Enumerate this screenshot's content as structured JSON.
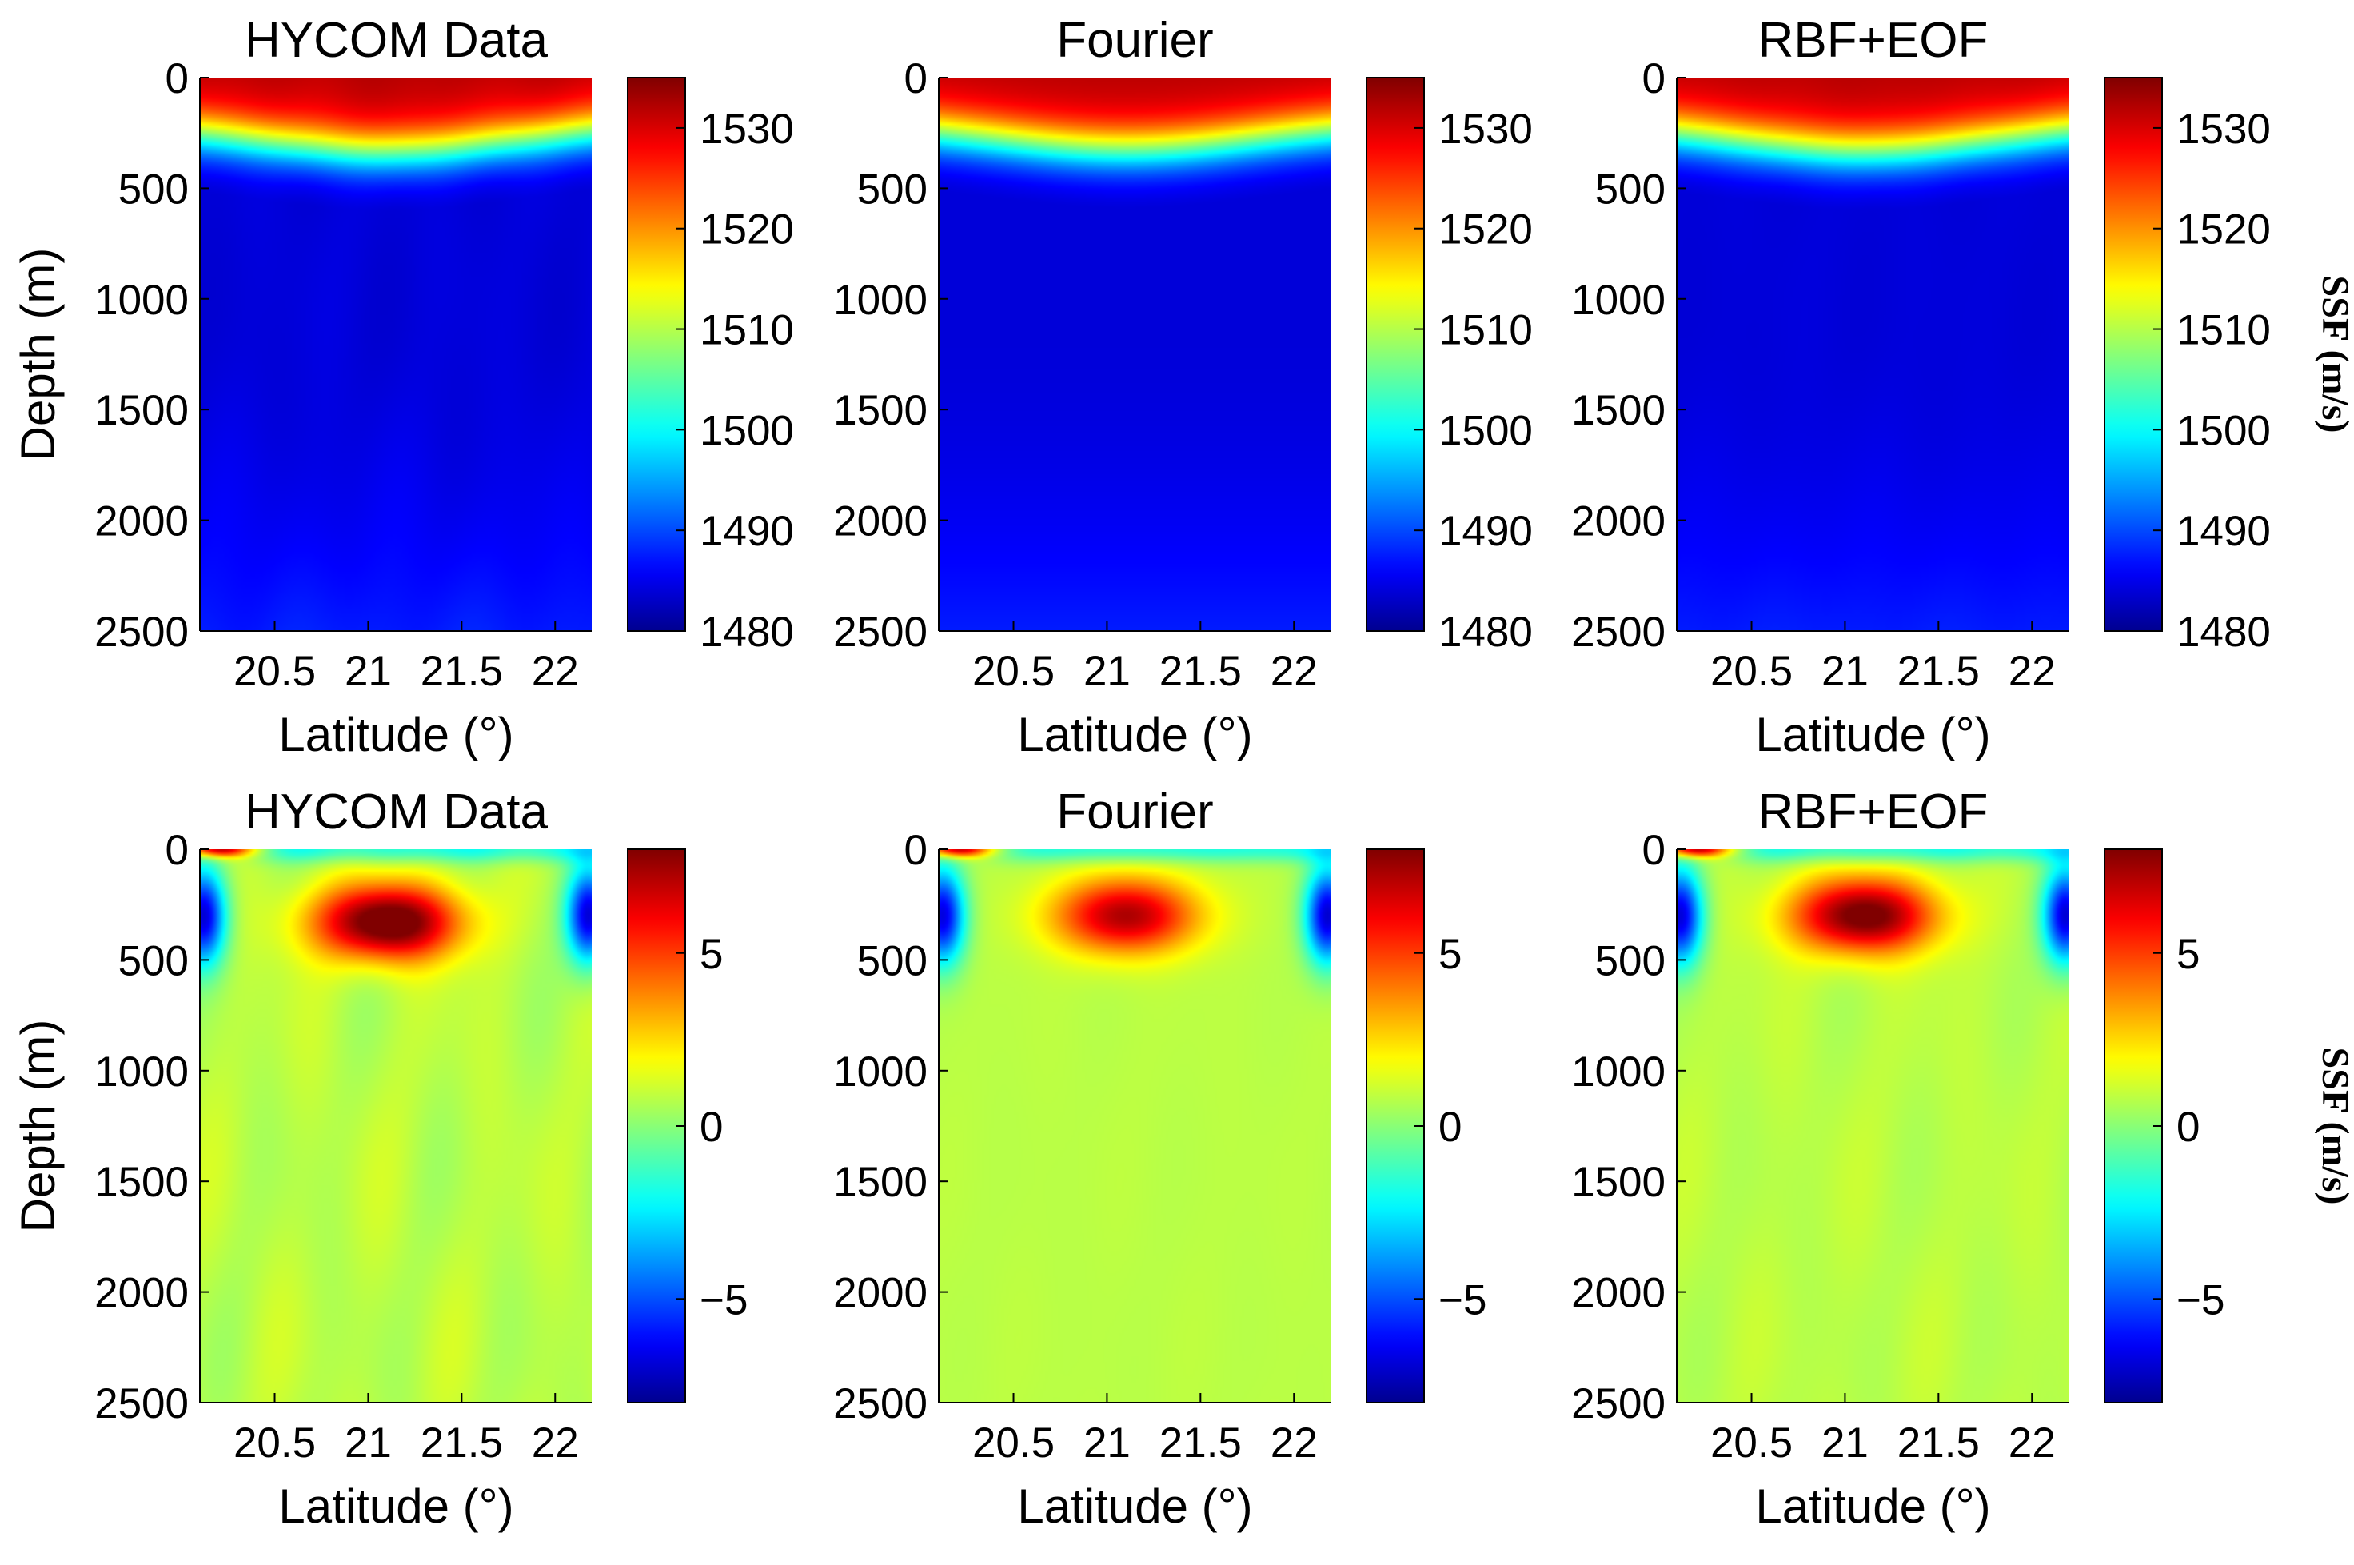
{
  "colors": {
    "jet": [
      "#00008f",
      "#0000ff",
      "#00ffff",
      "#ffff00",
      "#ff0000",
      "#800000"
    ]
  },
  "chart_data": [
    {
      "type": "heatmap",
      "id": "top-hycom",
      "title": "HYCOM Data",
      "xlabel": "Latitude (°)",
      "ylabel": "Depth (m)",
      "xlim": [
        20.1,
        22.2
      ],
      "xticks": [
        "20.5",
        "21",
        "21.5",
        "22"
      ],
      "xtick_values": [
        20.5,
        21.0,
        21.5,
        22.0
      ],
      "ylim": [
        0,
        2500
      ],
      "yticks": [
        "0",
        "500",
        "1000",
        "1500",
        "2000",
        "2500"
      ],
      "ytick_values": [
        0,
        500,
        1000,
        1500,
        2000,
        2500
      ],
      "y_reversed": true,
      "clim": [
        1480,
        1535
      ],
      "colorbar_ticks": [
        "1480",
        "1490",
        "1500",
        "1510",
        "1520",
        "1530"
      ],
      "colorbar_values": [
        1480,
        1490,
        1500,
        1510,
        1520,
        1530
      ],
      "colorbar_label": "",
      "field": "profile",
      "params": {
        "surface": 1532,
        "thermocline_shallow": 200,
        "thermocline_deep": 330,
        "core_center": 21.1,
        "noise": 1.0
      }
    },
    {
      "type": "heatmap",
      "id": "top-fourier",
      "title": "Fourier",
      "xlabel": "Latitude (°)",
      "ylabel": "",
      "xlim": [
        20.1,
        22.2
      ],
      "xticks": [
        "20.5",
        "21",
        "21.5",
        "22"
      ],
      "xtick_values": [
        20.5,
        21.0,
        21.5,
        22.0
      ],
      "ylim": [
        0,
        2500
      ],
      "yticks": [
        "0",
        "500",
        "1000",
        "1500",
        "2000",
        "2500"
      ],
      "ytick_values": [
        0,
        500,
        1000,
        1500,
        2000,
        2500
      ],
      "y_reversed": true,
      "clim": [
        1480,
        1535
      ],
      "colorbar_ticks": [
        "1480",
        "1490",
        "1500",
        "1510",
        "1520",
        "1530"
      ],
      "colorbar_values": [
        1480,
        1490,
        1500,
        1510,
        1520,
        1530
      ],
      "colorbar_label": "",
      "field": "profile",
      "params": {
        "surface": 1532,
        "thermocline_shallow": 200,
        "thermocline_deep": 320,
        "core_center": 21.1,
        "noise": 0
      }
    },
    {
      "type": "heatmap",
      "id": "top-rbf-eof",
      "title": "RBF+EOF",
      "xlabel": "Latitude (°)",
      "ylabel": "",
      "xlim": [
        20.1,
        22.2
      ],
      "xticks": [
        "20.5",
        "21",
        "21.5",
        "22"
      ],
      "xtick_values": [
        20.5,
        21.0,
        21.5,
        22.0
      ],
      "ylim": [
        0,
        2500
      ],
      "yticks": [
        "0",
        "500",
        "1000",
        "1500",
        "2000",
        "2500"
      ],
      "ytick_values": [
        0,
        500,
        1000,
        1500,
        2000,
        2500
      ],
      "y_reversed": true,
      "clim": [
        1480,
        1535
      ],
      "colorbar_ticks": [
        "1480",
        "1490",
        "1500",
        "1510",
        "1520",
        "1530"
      ],
      "colorbar_values": [
        1480,
        1490,
        1500,
        1510,
        1520,
        1530
      ],
      "colorbar_label": "SSF (m/s)",
      "field": "profile",
      "params": {
        "surface": 1532,
        "thermocline_shallow": 200,
        "thermocline_deep": 330,
        "core_center": 21.1,
        "noise": 0.4
      }
    },
    {
      "type": "heatmap",
      "id": "bottom-hycom",
      "title": "HYCOM Data",
      "xlabel": "Latitude (°)",
      "ylabel": "Depth (m)",
      "xlim": [
        20.1,
        22.2
      ],
      "xticks": [
        "20.5",
        "21",
        "21.5",
        "22"
      ],
      "xtick_values": [
        20.5,
        21.0,
        21.5,
        22.0
      ],
      "ylim": [
        0,
        2500
      ],
      "yticks": [
        "0",
        "500",
        "1000",
        "1500",
        "2000",
        "2500"
      ],
      "ytick_values": [
        0,
        500,
        1000,
        1500,
        2000,
        2500
      ],
      "y_reversed": true,
      "clim": [
        -8,
        8
      ],
      "colorbar_ticks": [
        "−5",
        "0",
        "5"
      ],
      "colorbar_values": [
        -5,
        0,
        5
      ],
      "colorbar_label": "",
      "field": "anomaly",
      "params": {
        "peak": 8.5,
        "center_lat": 21.1,
        "center_depth": 330,
        "noise": 1.0
      }
    },
    {
      "type": "heatmap",
      "id": "bottom-fourier",
      "title": "Fourier",
      "xlabel": "Latitude (°)",
      "ylabel": "",
      "xlim": [
        20.1,
        22.2
      ],
      "xticks": [
        "20.5",
        "21",
        "21.5",
        "22"
      ],
      "xtick_values": [
        20.5,
        21.0,
        21.5,
        22.0
      ],
      "ylim": [
        0,
        2500
      ],
      "yticks": [
        "0",
        "500",
        "1000",
        "1500",
        "2000",
        "2500"
      ],
      "ytick_values": [
        0,
        500,
        1000,
        1500,
        2000,
        2500
      ],
      "y_reversed": true,
      "clim": [
        -8,
        8
      ],
      "colorbar_ticks": [
        "−5",
        "0",
        "5"
      ],
      "colorbar_values": [
        -5,
        0,
        5
      ],
      "colorbar_label": "",
      "field": "anomaly",
      "params": {
        "peak": 6.5,
        "center_lat": 21.1,
        "center_depth": 300,
        "noise": 0.15
      }
    },
    {
      "type": "heatmap",
      "id": "bottom-rbf-eof",
      "title": "RBF+EOF",
      "xlabel": "Latitude (°)",
      "ylabel": "",
      "xlim": [
        20.1,
        22.2
      ],
      "xticks": [
        "20.5",
        "21",
        "21.5",
        "22"
      ],
      "xtick_values": [
        20.5,
        21.0,
        21.5,
        22.0
      ],
      "ylim": [
        0,
        2500
      ],
      "yticks": [
        "0",
        "500",
        "1000",
        "1500",
        "2000",
        "2500"
      ],
      "ytick_values": [
        0,
        500,
        1000,
        1500,
        2000,
        2500
      ],
      "y_reversed": true,
      "clim": [
        -8,
        8
      ],
      "colorbar_ticks": [
        "−5",
        "0",
        "5"
      ],
      "colorbar_values": [
        -5,
        0,
        5
      ],
      "colorbar_label": "SSF (m/s)",
      "field": "anomaly",
      "params": {
        "peak": 7.8,
        "center_lat": 21.1,
        "center_depth": 300,
        "noise": 0.6
      }
    }
  ]
}
